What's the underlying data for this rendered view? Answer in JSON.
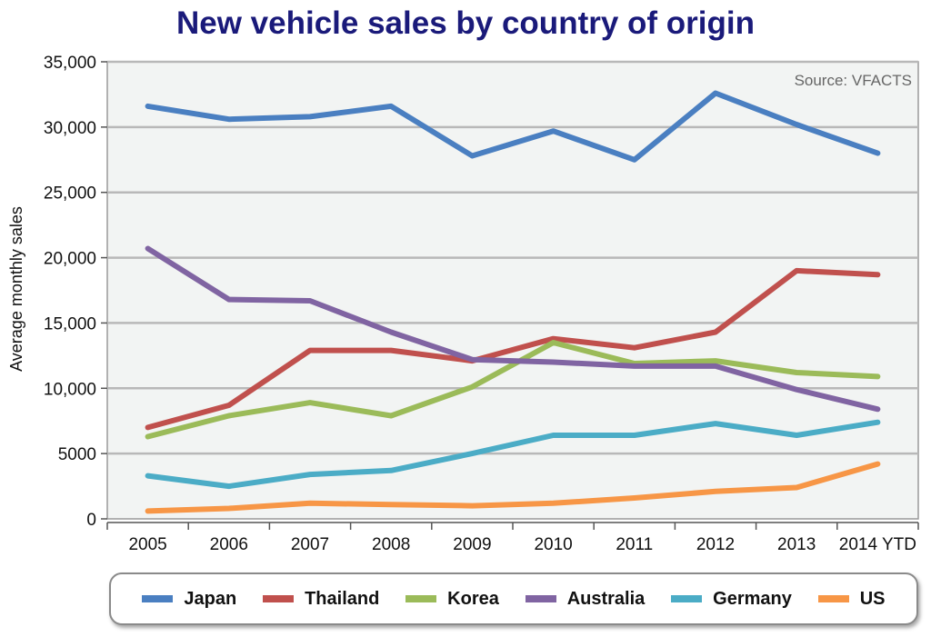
{
  "chart_data": {
    "type": "line",
    "title": "New vehicle sales by country of origin",
    "ylabel": "Average monthly sales",
    "source": "Source: VFACTS",
    "categories": [
      "2005",
      "2006",
      "2007",
      "2008",
      "2009",
      "2010",
      "2011",
      "2012",
      "2013",
      "2014 YTD"
    ],
    "ylim": [
      0,
      35000
    ],
    "yticks": [
      0,
      5000,
      10000,
      15000,
      20000,
      25000,
      30000,
      35000
    ],
    "ytick_labels": [
      "0",
      "5000",
      "10,000",
      "15,000",
      "20,000",
      "25,000",
      "30,000",
      "35,000"
    ],
    "grid": true,
    "legend_position": "bottom",
    "series": [
      {
        "name": "Japan",
        "color": "#4a7fc1",
        "values": [
          31600,
          30600,
          30800,
          31600,
          27800,
          29700,
          27500,
          32600,
          30200,
          28000
        ]
      },
      {
        "name": "Thailand",
        "color": "#c0504d",
        "values": [
          7000,
          8700,
          12900,
          12900,
          12100,
          13800,
          13100,
          14300,
          19000,
          18700
        ]
      },
      {
        "name": "Korea",
        "color": "#9bbb59",
        "values": [
          6300,
          7900,
          8900,
          7900,
          10100,
          13500,
          11900,
          12100,
          11200,
          10900
        ]
      },
      {
        "name": "Australia",
        "color": "#8064a2",
        "values": [
          20700,
          16800,
          16700,
          14300,
          12200,
          12000,
          11700,
          11700,
          9900,
          8400
        ]
      },
      {
        "name": "Germany",
        "color": "#4bacc6",
        "values": [
          3300,
          2500,
          3400,
          3700,
          5000,
          6400,
          6400,
          7300,
          6400,
          7400
        ]
      },
      {
        "name": "US",
        "color": "#f79646",
        "values": [
          600,
          800,
          1200,
          1100,
          1000,
          1200,
          1600,
          2100,
          2400,
          4200
        ]
      }
    ]
  }
}
